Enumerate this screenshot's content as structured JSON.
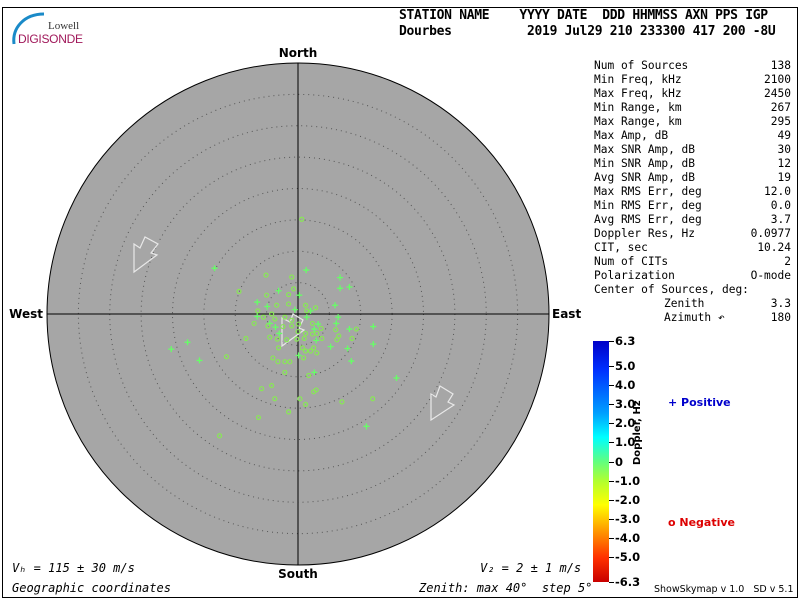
{
  "logo": {
    "line1": "Lowell",
    "line2": "DIGISONDE"
  },
  "header": {
    "labels": "STATION NAME    YYYY DATE  DDD HHMMSS AXN PPS IGP",
    "station": "Dourbes",
    "values": "2019 Jul29 210 233300 417 200 -8U"
  },
  "directions": {
    "north": "North",
    "south": "South",
    "east": "East",
    "west": "West"
  },
  "stats": [
    {
      "label": "Num of Sources",
      "value": "138"
    },
    {
      "label": "Min Freq, kHz",
      "value": "2100"
    },
    {
      "label": "Max Freq, kHz",
      "value": "2450"
    },
    {
      "label": "Min Range, km",
      "value": "267"
    },
    {
      "label": "Max Range, km",
      "value": "295"
    },
    {
      "label": "Max Amp, dB",
      "value": "49"
    },
    {
      "label": "Max SNR Amp, dB",
      "value": "30"
    },
    {
      "label": "Min SNR Amp, dB",
      "value": "12"
    },
    {
      "label": "Avg SNR Amp, dB",
      "value": "19"
    },
    {
      "label": "Max RMS Err, deg",
      "value": "12.0"
    },
    {
      "label": "Min RMS Err, deg",
      "value": "0.0"
    },
    {
      "label": "Avg RMS Err, deg",
      "value": "3.7"
    },
    {
      "label": "Doppler Res, Hz",
      "value": "0.0977"
    },
    {
      "label": "CIT, sec",
      "value": "10.24"
    },
    {
      "label": "Num of CITs",
      "value": "2"
    },
    {
      "label": "Polarization",
      "value": "O-mode"
    }
  ],
  "center": {
    "title": "Center of Sources, deg:",
    "zenith_label": "Zenith",
    "zenith": "3.3",
    "azimuth_label": "Azimuth ↶",
    "azimuth": "180"
  },
  "velocity": {
    "vh": "Vₕ = 115 ± 30 m/s",
    "vz": "V₂ = 2 ± 1 m/s"
  },
  "footer": {
    "coords": "Geographic coordinates",
    "zenith": "Zenith: max 40°  step 5°",
    "version": "ShowSkymap v 1.0   SD v 5.1"
  },
  "colorbar": {
    "title": "Doppler, Hz",
    "ticks": [
      "6.3",
      "5.0",
      "4.0",
      "3.0",
      "2.0",
      "1.0",
      "0",
      "-1.0",
      "-2.0",
      "-3.0",
      "-4.0",
      "-5.0",
      "-6.3"
    ],
    "positive": "Positive",
    "negative": "Negative",
    "positive_color": "#0000cc",
    "negative_color": "#dd0000"
  },
  "chart_data": {
    "type": "scatter",
    "projection": "polar skymap, zenith angle radius",
    "zenith_max": 40,
    "zenith_step": 5,
    "plot_background": "#a6a6a6",
    "point_color": "#66ff66",
    "sources_east_north_deg": [
      [
        0.6,
        15.1,
        "o"
      ],
      [
        -13.3,
        7.3,
        "+"
      ],
      [
        -5.1,
        6.2,
        "o"
      ],
      [
        1.3,
        7.0,
        "+"
      ],
      [
        -1.0,
        5.9,
        "o"
      ],
      [
        6.7,
        5.8,
        "+"
      ],
      [
        -9.4,
        3.6,
        "o"
      ],
      [
        6.7,
        4.1,
        "+"
      ],
      [
        8.2,
        4.3,
        "+"
      ],
      [
        -0.7,
        4.0,
        "o"
      ],
      [
        -3.1,
        3.7,
        "+"
      ],
      [
        -5.0,
        3.0,
        "o"
      ],
      [
        -1.5,
        3.1,
        "o"
      ],
      [
        0.2,
        3.0,
        "+"
      ],
      [
        -6.5,
        1.9,
        "+"
      ],
      [
        -1.5,
        1.6,
        "o"
      ],
      [
        -3.4,
        1.4,
        "o"
      ],
      [
        -4.9,
        1.2,
        "+"
      ],
      [
        1.2,
        1.4,
        "o"
      ],
      [
        5.9,
        1.4,
        "+"
      ],
      [
        2.8,
        1.0,
        "o"
      ],
      [
        -6.4,
        0.5,
        "o"
      ],
      [
        -0.5,
        0.7,
        "+"
      ],
      [
        2.0,
        0.5,
        "+"
      ],
      [
        1.4,
        0.5,
        "o"
      ],
      [
        -6.5,
        -0.4,
        "+"
      ],
      [
        -5.5,
        -0.5,
        "o"
      ],
      [
        -4.2,
        0,
        "o"
      ],
      [
        -3.7,
        -0.8,
        "o"
      ],
      [
        1.4,
        -0.5,
        "+"
      ],
      [
        6.4,
        -0.5,
        "+"
      ],
      [
        -2.1,
        -0.5,
        "o"
      ],
      [
        -1.0,
        -1.0,
        "o"
      ],
      [
        -7.0,
        -1.5,
        "o"
      ],
      [
        -4.5,
        -1.5,
        "+"
      ],
      [
        -4.8,
        -1.9,
        "o"
      ],
      [
        -3.6,
        -2.1,
        "+"
      ],
      [
        -2.4,
        -2.0,
        "o"
      ],
      [
        -1.0,
        -1.9,
        "o"
      ],
      [
        0.1,
        -1.6,
        "o"
      ],
      [
        2.3,
        -1.5,
        "o"
      ],
      [
        3.2,
        -1.6,
        "+"
      ],
      [
        6.1,
        -1.5,
        "+"
      ],
      [
        3.7,
        -2.3,
        "o"
      ],
      [
        2.6,
        -2.4,
        "+"
      ],
      [
        0,
        -2.8,
        "o"
      ],
      [
        1.2,
        -3.1,
        "o"
      ],
      [
        2.3,
        -3.2,
        "o"
      ],
      [
        3.0,
        -3.1,
        "o"
      ],
      [
        8.2,
        -2.4,
        "+"
      ],
      [
        6.0,
        -2.5,
        "o"
      ],
      [
        9.3,
        -2.4,
        "o"
      ],
      [
        12.0,
        -2.0,
        "+"
      ],
      [
        -3.0,
        -3.1,
        "+"
      ],
      [
        -4.5,
        -3.7,
        "o"
      ],
      [
        -8.3,
        -3.9,
        "o"
      ],
      [
        -3.3,
        -4.0,
        "o"
      ],
      [
        -1.8,
        -4.1,
        "o"
      ],
      [
        -0.2,
        -4.0,
        "o"
      ],
      [
        1.0,
        -3.9,
        "o"
      ],
      [
        2.9,
        -4.2,
        "+"
      ],
      [
        3.8,
        -3.9,
        "o"
      ],
      [
        6.5,
        -3.5,
        "o"
      ],
      [
        8.6,
        -3.9,
        "o"
      ],
      [
        6.2,
        -4.1,
        "o"
      ],
      [
        5.2,
        -5.2,
        "+"
      ],
      [
        7.9,
        -5.5,
        "+"
      ],
      [
        12.0,
        -4.8,
        "+"
      ],
      [
        -17.6,
        -4.5,
        "+"
      ],
      [
        -20.2,
        -5.6,
        "+"
      ],
      [
        -15.7,
        -7.4,
        "+"
      ],
      [
        -11.4,
        -6.8,
        "o"
      ],
      [
        -3.1,
        -5.4,
        "o"
      ],
      [
        0.7,
        -5.4,
        "o"
      ],
      [
        1.2,
        -5.9,
        "o"
      ],
      [
        2.0,
        -5.9,
        "o"
      ],
      [
        2.5,
        -5.4,
        "o"
      ],
      [
        3.0,
        -6.2,
        "o"
      ],
      [
        0.1,
        -6.6,
        "+"
      ],
      [
        0.9,
        -7.0,
        "o"
      ],
      [
        -4.0,
        -7.0,
        "o"
      ],
      [
        -3.2,
        -7.6,
        "o"
      ],
      [
        -2.1,
        -7.6,
        "o"
      ],
      [
        -1.3,
        -7.6,
        "o"
      ],
      [
        8.5,
        -7.5,
        "+"
      ],
      [
        -2.1,
        -9.3,
        "o"
      ],
      [
        2.6,
        -9.3,
        "+"
      ],
      [
        1.7,
        -9.8,
        "o"
      ],
      [
        15.7,
        -10.2,
        "+"
      ],
      [
        -4.2,
        -11.4,
        "o"
      ],
      [
        -5.8,
        -11.9,
        "o"
      ],
      [
        2.9,
        -12.1,
        "o"
      ],
      [
        2.5,
        -12.4,
        "o"
      ],
      [
        -3.7,
        -13.5,
        "o"
      ],
      [
        0.3,
        -13.5,
        "o"
      ],
      [
        7.0,
        -14.0,
        "o"
      ],
      [
        11.9,
        -13.5,
        "o"
      ],
      [
        1.2,
        -14.4,
        "o"
      ],
      [
        -1.5,
        -15.6,
        "o"
      ],
      [
        -6.3,
        -16.5,
        "o"
      ],
      [
        10.9,
        -17.9,
        "+"
      ],
      [
        -12.5,
        -19.4,
        "o"
      ]
    ]
  }
}
